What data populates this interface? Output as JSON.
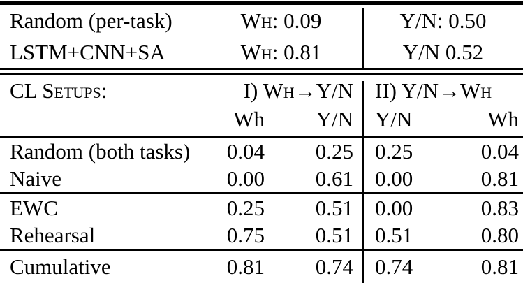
{
  "colors": {
    "background": "#ffffff",
    "text": "#000000",
    "rule": "#000000"
  },
  "baseline_section": {
    "rows": [
      {
        "model": "Random (per-task)",
        "wh_score": "Wh: 0.09",
        "yn_score": "Y/N: 0.50"
      },
      {
        "model": "LSTM+CNN+SA",
        "wh_score": "Wh: 0.81",
        "yn_score": "Y/N 0.52"
      }
    ]
  },
  "cl_section": {
    "title": "CL Setups:",
    "setup_i": "I) Wh→Y/N",
    "setup_ii": "II) Y/N→Wh",
    "columns": {
      "s1c1": "Wh",
      "s1c2": "Y/N",
      "s2c1": "Y/N",
      "s2c2": "Wh"
    },
    "groups": [
      {
        "rows": [
          {
            "method": "Random (both tasks)",
            "values": [
              "0.04",
              "0.25",
              "0.25",
              "0.04"
            ]
          },
          {
            "method": "Naive",
            "values": [
              "0.00",
              "0.61",
              "0.00",
              "0.81"
            ]
          }
        ]
      },
      {
        "rows": [
          {
            "method": "EWC",
            "values": [
              "0.25",
              "0.51",
              "0.00",
              "0.83"
            ]
          },
          {
            "method": "Rehearsal",
            "values": [
              "0.75",
              "0.51",
              "0.51",
              "0.80"
            ]
          }
        ]
      },
      {
        "rows": [
          {
            "method": "Cumulative",
            "values": [
              "0.81",
              "0.74",
              "0.74",
              "0.81"
            ]
          }
        ]
      }
    ]
  }
}
